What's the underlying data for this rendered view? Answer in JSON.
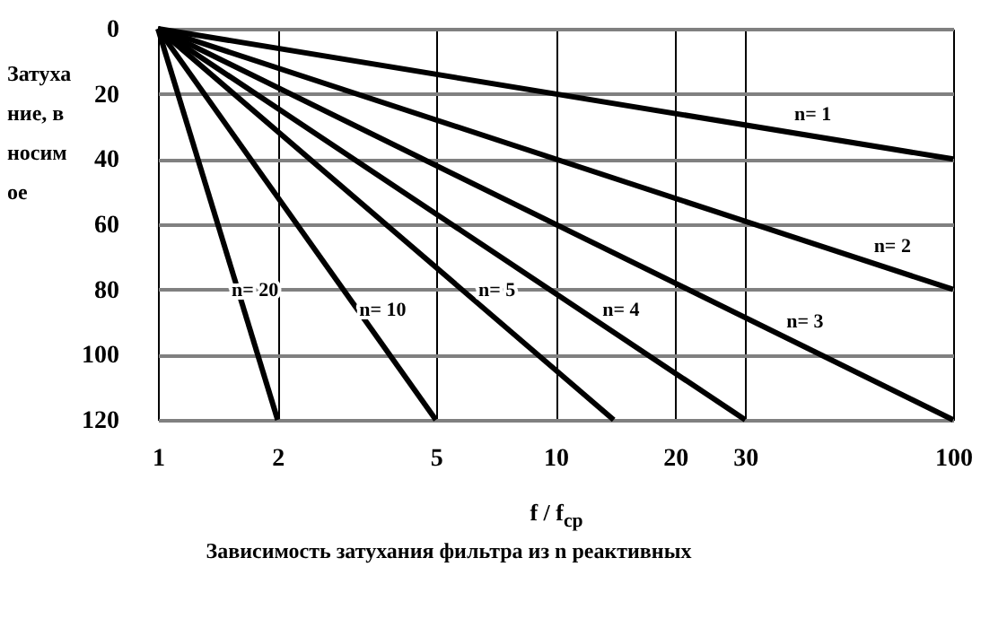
{
  "chart_data": {
    "type": "line",
    "title": "Зависимость затухания фильтра из n реактивных",
    "xlabel": "f / f$_{ср}$",
    "ylabel": "Затухание, вносимое",
    "log": "x",
    "xlim": [
      1,
      100
    ],
    "xticks": [
      1,
      2,
      5,
      10,
      20,
      30,
      100
    ],
    "ylim": [
      120,
      0
    ],
    "yticks": [
      0,
      20,
      40,
      60,
      80,
      100,
      120
    ],
    "grid": true,
    "legend": false,
    "series": [
      {
        "name": "n= 1",
        "color": "#000000",
        "x": [
          1,
          100
        ],
        "values": [
          0,
          40
        ]
      },
      {
        "name": "n= 2",
        "color": "#000000",
        "x": [
          1,
          100
        ],
        "values": [
          0,
          80
        ]
      },
      {
        "name": "n= 3",
        "color": "#000000",
        "x": [
          1,
          100
        ],
        "values": [
          0,
          120
        ]
      },
      {
        "name": "n= 4",
        "color": "#000000",
        "x": [
          1,
          30
        ],
        "values": [
          0,
          120
        ]
      },
      {
        "name": "n= 5",
        "color": "#000000",
        "x": [
          1,
          14
        ],
        "values": [
          0,
          120
        ]
      },
      {
        "name": "n= 10",
        "color": "#000000",
        "x": [
          1,
          5
        ],
        "values": [
          0,
          120
        ]
      },
      {
        "name": "n= 20",
        "color": "#000000",
        "x": [
          1,
          2
        ],
        "values": [
          0,
          120
        ]
      }
    ]
  }
}
